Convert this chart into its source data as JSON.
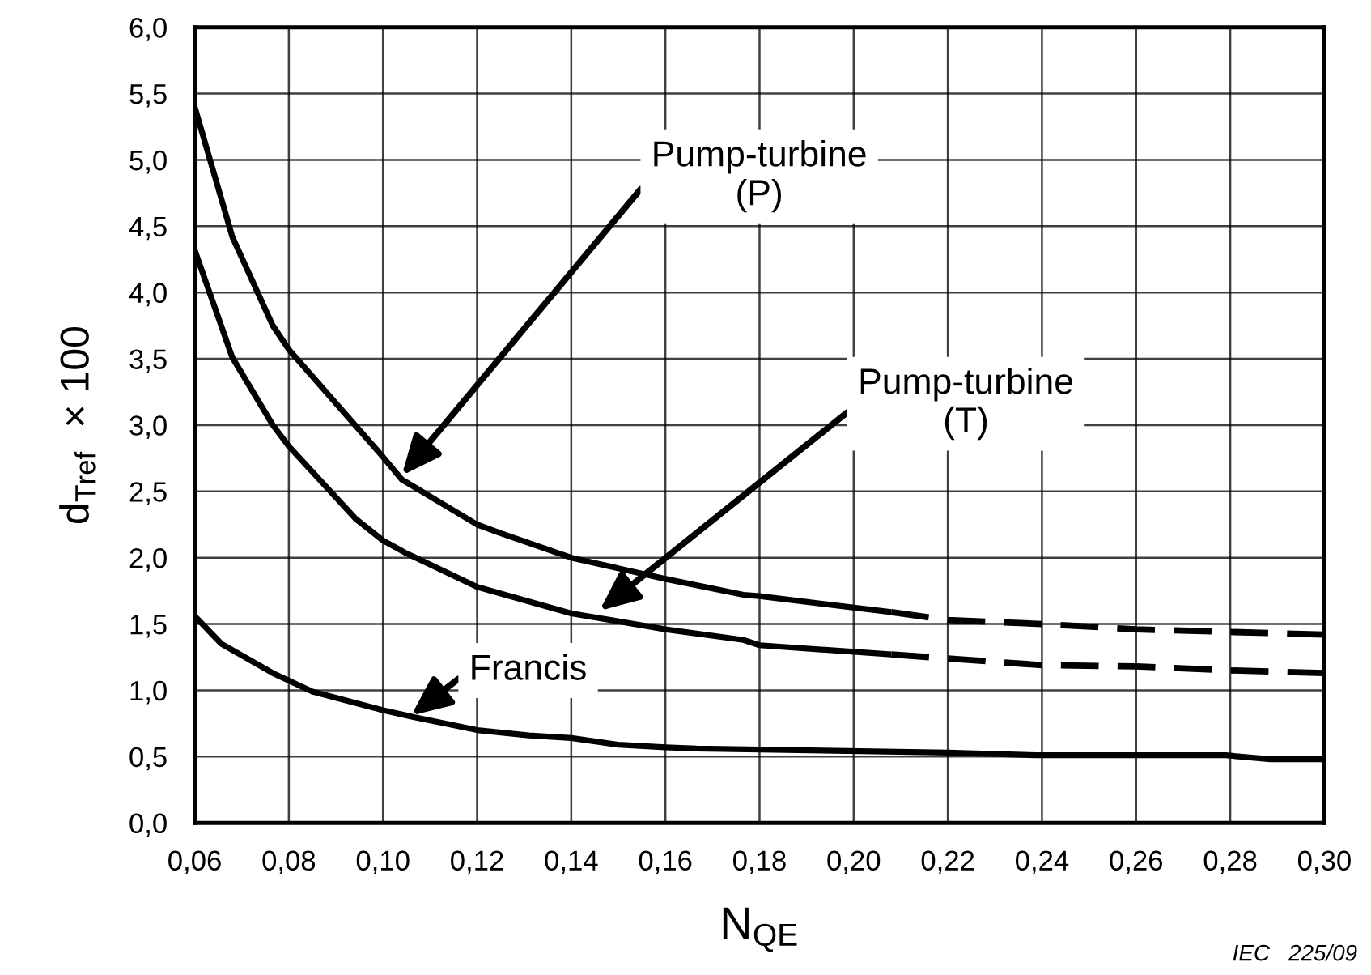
{
  "chart_data": {
    "type": "line",
    "xlabel": "N$_{QE}$",
    "ylabel": "d$_{Tref}$  × 100",
    "series": [
      {
        "color": "#000000",
        "line_style": "solid",
        "x": [
          0.06,
          0.068,
          0.0766,
          0.08,
          0.1,
          0.104,
          0.12,
          0.1246,
          0.14,
          0.16,
          0.1766,
          0.18,
          0.208
        ],
        "values": [
          5.4,
          4.42,
          3.75,
          3.57,
          2.76,
          2.59,
          2.25,
          2.19,
          2.0,
          1.84,
          1.72,
          1.71,
          1.59
        ]
      },
      {
        "color": "#000000",
        "line_style": "dashed",
        "x": [
          0.208,
          0.22,
          0.24,
          0.26,
          0.28,
          0.3
        ],
        "values": [
          1.59,
          1.53,
          1.5,
          1.46,
          1.44,
          1.42
        ]
      },
      {
        "color": "#000000",
        "line_style": "solid",
        "x": [
          0.06,
          0.068,
          0.0766,
          0.08,
          0.0943,
          0.1,
          0.1046,
          0.12,
          0.14,
          0.16,
          0.1766,
          0.18,
          0.208
        ],
        "values": [
          4.32,
          3.51,
          3.0,
          2.84,
          2.29,
          2.13,
          2.04,
          1.78,
          1.58,
          1.46,
          1.38,
          1.34,
          1.27
        ]
      },
      {
        "color": "#000000",
        "line_style": "dashed",
        "x": [
          0.208,
          0.22,
          0.24,
          0.26,
          0.28,
          0.3
        ],
        "values": [
          1.27,
          1.24,
          1.19,
          1.18,
          1.15,
          1.13
        ]
      },
      {
        "color": "#000000",
        "line_style": "solid",
        "x": [
          0.06,
          0.0657,
          0.0766,
          0.085,
          0.1,
          0.1063,
          0.12,
          0.131,
          0.14,
          0.15,
          0.16,
          0.1666,
          0.22,
          0.2388,
          0.279,
          0.2886,
          0.3
        ],
        "values": [
          1.56,
          1.35,
          1.13,
          0.99,
          0.85,
          0.8,
          0.7,
          0.66,
          0.64,
          0.59,
          0.57,
          0.56,
          0.53,
          0.51,
          0.51,
          0.48,
          0.48
        ]
      }
    ],
    "xlim": [
      0.06,
      0.3
    ],
    "xticks": [
      {
        "value": 0.06,
        "label": "0,06"
      },
      {
        "value": 0.08,
        "label": "0,08"
      },
      {
        "value": 0.1,
        "label": "0,10"
      },
      {
        "value": 0.12,
        "label": "0,12"
      },
      {
        "value": 0.14,
        "label": "0,14"
      },
      {
        "value": 0.16,
        "label": "0,16"
      },
      {
        "value": 0.18,
        "label": "0,18"
      },
      {
        "value": 0.2,
        "label": "0,20"
      },
      {
        "value": 0.22,
        "label": "0,22"
      },
      {
        "value": 0.24,
        "label": "0,24"
      },
      {
        "value": 0.26,
        "label": "0,26"
      },
      {
        "value": 0.28,
        "label": "0,28"
      },
      {
        "value": 0.3,
        "label": "0,30"
      }
    ],
    "ylim": [
      0,
      6
    ],
    "yticks": [
      {
        "value": 0,
        "label": "0,0"
      },
      {
        "value": 0.5,
        "label": "0,5"
      },
      {
        "value": 1,
        "label": "1,0"
      },
      {
        "value": 1.5,
        "label": "1,5"
      },
      {
        "value": 2,
        "label": "2,0"
      },
      {
        "value": 2.5,
        "label": "2,5"
      },
      {
        "value": 3,
        "label": "3,0"
      },
      {
        "value": 3.5,
        "label": "3,5"
      },
      {
        "value": 4,
        "label": "4,0"
      },
      {
        "value": 4.5,
        "label": "4,5"
      },
      {
        "value": 5,
        "label": "5,0"
      },
      {
        "value": 5.5,
        "label": "5,5"
      },
      {
        "value": 6,
        "label": "6,0"
      }
    ],
    "grid": true,
    "marker": "none",
    "annotations": [
      {
        "text": "Pump-turbine\n(P)",
        "x": 0.104,
        "y": 2.62
      },
      {
        "text": "Pump-turbine\n(T)",
        "x": 0.146,
        "y": 1.6
      },
      {
        "text": "Francis",
        "x": 0.106,
        "y": 0.81
      },
      "IEC   225/09"
    ]
  }
}
